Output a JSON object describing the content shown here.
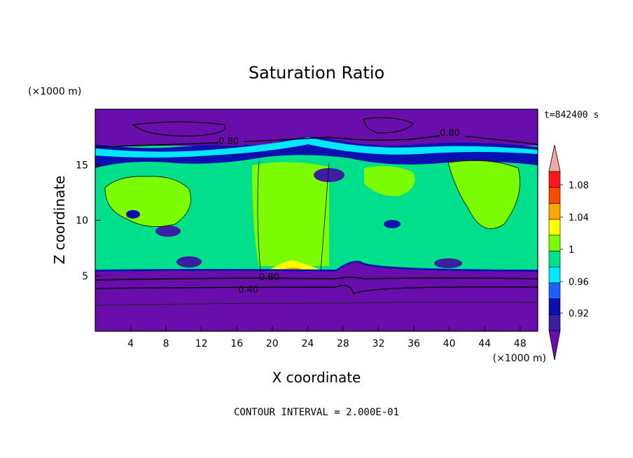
{
  "chart_data": {
    "type": "heatmap",
    "title": "Saturation Ratio",
    "time_label": "t=842400 s",
    "xlabel": "X coordinate",
    "ylabel": "Z coordinate",
    "x_unit": "(×1000 m)",
    "y_unit": "(×1000 m)",
    "xlim": [
      0,
      50
    ],
    "ylim": [
      0,
      20
    ],
    "x_ticks": [
      4,
      8,
      12,
      16,
      20,
      24,
      28,
      32,
      36,
      40,
      44,
      48
    ],
    "y_ticks": [
      5,
      10,
      15
    ],
    "footer": "CONTOUR INTERVAL = 2.000E-01",
    "contour_labels": [
      "0.80",
      "0.80",
      "0.80",
      "0.40"
    ],
    "colorbar": {
      "tick_labels": [
        "1.08",
        "1.04",
        "1",
        "0.96",
        "0.92"
      ],
      "levels": [
        0.9,
        0.92,
        0.94,
        0.96,
        0.98,
        1.0,
        1.02,
        1.04,
        1.06,
        1.08,
        1.1
      ],
      "colors": [
        "#6a0dad",
        "#3a1fa0",
        "#0a10b0",
        "#1f5fff",
        "#00e8ff",
        "#00e08a",
        "#7cfc00",
        "#ffff00",
        "#ffa500",
        "#ff4a00",
        "#ff1a1a",
        "#f7a6a6"
      ]
    },
    "fields": {
      "upper_dry_layer_z": [
        17.5,
        20
      ],
      "lower_dry_layer_z": [
        0,
        5.5
      ],
      "moist_layer_z": [
        5.5,
        17.5
      ],
      "saturated_core_x": [
        19,
        26
      ]
    }
  }
}
